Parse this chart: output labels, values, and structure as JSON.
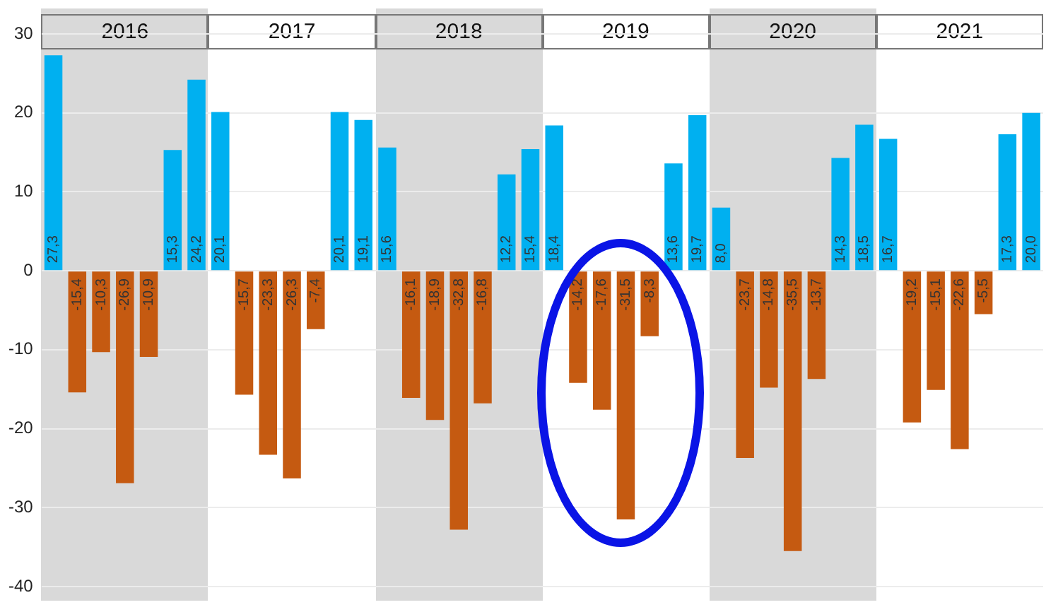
{
  "chart_data": {
    "type": "bar",
    "categories": [
      null,
      null,
      null,
      null,
      null,
      null,
      null,
      null,
      null,
      null,
      null,
      null,
      null,
      null,
      null,
      null,
      null,
      null,
      null,
      null,
      null,
      null,
      null,
      null,
      null,
      null,
      null,
      null,
      null,
      null,
      null,
      null,
      null,
      null,
      null,
      null,
      null,
      null,
      null,
      null,
      null,
      null
    ],
    "values": [
      27.3,
      -15.4,
      -10.3,
      -26.9,
      -10.9,
      15.3,
      24.2,
      20.1,
      -15.7,
      -23.3,
      -26.3,
      -7.4,
      20.1,
      19.1,
      15.6,
      -16.1,
      -18.9,
      -32.8,
      -16.8,
      12.2,
      15.4,
      18.4,
      -14.2,
      -17.6,
      -31.5,
      -8.3,
      13.6,
      19.7,
      8.0,
      -23.7,
      -14.8,
      -35.5,
      -13.7,
      14.3,
      18.5,
      16.7,
      -19.2,
      -15.1,
      -22.6,
      -5.5,
      17.3,
      20.0
    ],
    "value_labels": [
      "27,3",
      "-15,4",
      "-10,3",
      "-26,9",
      "-10,9",
      "15,3",
      "24,2",
      "20,1",
      "-15,7",
      "-23,3",
      "-26,3",
      "-7,4",
      "20,1",
      "19,1",
      "15,6",
      "-16,1",
      "-18,9",
      "-32,8",
      "-16,8",
      "12,2",
      "15,4",
      "18,4",
      "-14,2",
      "-17,6",
      "-31,5",
      "-8,3",
      "13,6",
      "19,7",
      "8,0",
      "-23,7",
      "-14,8",
      "-35,5",
      "-13,7",
      "14,3",
      "18,5",
      "16,7",
      "-19,2",
      "-15,1",
      "-22,6",
      "-5,5",
      "17,3",
      "20,0"
    ],
    "colors": [
      "#00b0f0",
      "#c55a11",
      "#c55a11",
      "#c55a11",
      "#c55a11",
      "#00b0f0",
      "#00b0f0",
      "#00b0f0",
      "#c55a11",
      "#c55a11",
      "#c55a11",
      "#c55a11",
      "#00b0f0",
      "#00b0f0",
      "#00b0f0",
      "#c55a11",
      "#c55a11",
      "#c55a11",
      "#c55a11",
      "#00b0f0",
      "#00b0f0",
      "#00b0f0",
      "#c55a11",
      "#c55a11",
      "#c55a11",
      "#c55a11",
      "#00b0f0",
      "#00b0f0",
      "#00b0f0",
      "#c55a11",
      "#c55a11",
      "#c55a11",
      "#c55a11",
      "#00b0f0",
      "#00b0f0",
      "#00b0f0",
      "#c55a11",
      "#c55a11",
      "#c55a11",
      "#c55a11",
      "#00b0f0",
      "#00b0f0"
    ],
    "annotations": [
      "2016",
      "2017",
      "2018",
      "2019",
      "2020",
      "2021"
    ],
    "ylim": [
      -40,
      30
    ],
    "yticks": [
      -40,
      -30,
      -20,
      -10,
      0,
      10,
      20,
      30
    ],
    "grid": "y",
    "tick_labels": "y",
    "legend": false
  }
}
